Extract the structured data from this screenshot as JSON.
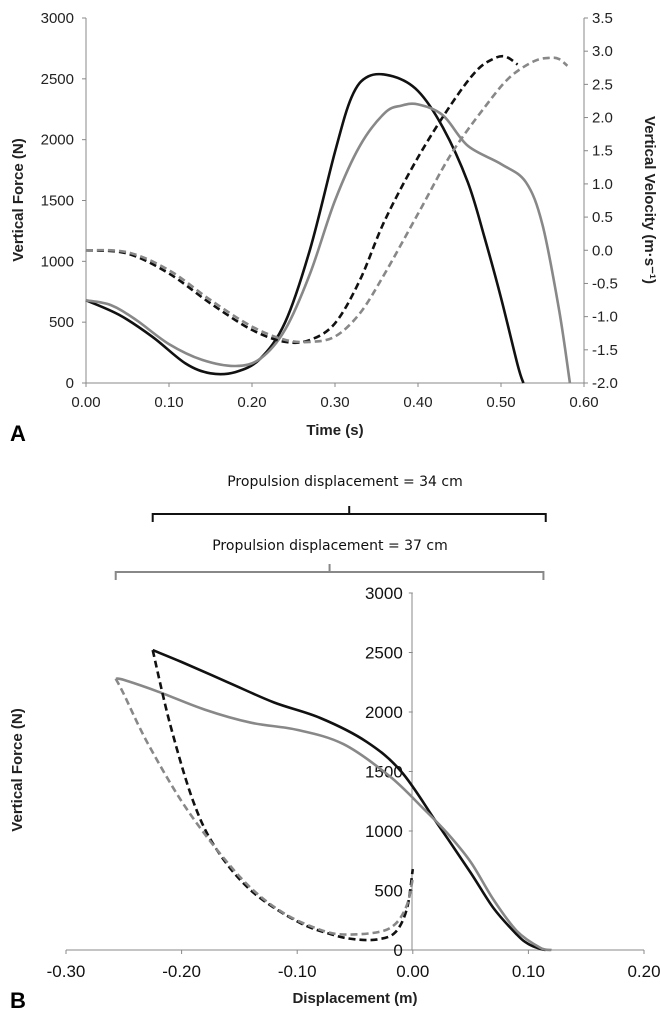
{
  "panel_a_label": "A",
  "panel_b_label": "B",
  "colors": {
    "black": "#111111",
    "gray": "#888888"
  },
  "chart_data": [
    {
      "type": "line",
      "panel": "A",
      "xlabel": "Time (s)",
      "ylabel": "Vertical Force (N)",
      "y2label": "Vertical Velocity (m·s⁻¹)",
      "xlim": [
        0,
        0.6
      ],
      "ylim": [
        0,
        3000
      ],
      "y2lim": [
        -2.0,
        3.5
      ],
      "xticks": [
        "0.00",
        "0.10",
        "0.20",
        "0.30",
        "0.40",
        "0.50",
        "0.60"
      ],
      "yticks": [
        "0",
        "500",
        "1000",
        "1500",
        "2000",
        "2500",
        "3000"
      ],
      "y2ticks": [
        "-2.0",
        "-1.5",
        "-1.0",
        "-0.5",
        "0.0",
        "0.5",
        "1.0",
        "1.5",
        "2.0",
        "2.5",
        "3.0",
        "3.5"
      ],
      "series": [
        {
          "color": "black",
          "dash": false,
          "axis": "left",
          "x": [
            0,
            0.04,
            0.08,
            0.12,
            0.15,
            0.18,
            0.21,
            0.24,
            0.27,
            0.3,
            0.32,
            0.34,
            0.37,
            0.4,
            0.43,
            0.46,
            0.48,
            0.5,
            0.52,
            0.527
          ],
          "y": [
            680,
            560,
            380,
            160,
            80,
            90,
            200,
            500,
            1100,
            1900,
            2350,
            2520,
            2520,
            2400,
            2100,
            1650,
            1200,
            700,
            150,
            0
          ]
        },
        {
          "color": "gray",
          "dash": false,
          "axis": "left",
          "x": [
            0,
            0.03,
            0.06,
            0.1,
            0.14,
            0.18,
            0.21,
            0.24,
            0.27,
            0.3,
            0.33,
            0.36,
            0.38,
            0.4,
            0.43,
            0.46,
            0.5,
            0.53,
            0.55,
            0.57,
            0.583
          ],
          "y": [
            680,
            640,
            520,
            320,
            190,
            140,
            200,
            440,
            900,
            1500,
            1950,
            2220,
            2280,
            2290,
            2200,
            1950,
            1800,
            1650,
            1300,
            600,
            0
          ]
        },
        {
          "color": "black",
          "dash": true,
          "axis": "right",
          "x": [
            0,
            0.05,
            0.1,
            0.15,
            0.2,
            0.24,
            0.27,
            0.3,
            0.33,
            0.36,
            0.4,
            0.44,
            0.47,
            0.49,
            0.505,
            0.52
          ],
          "y": [
            0.0,
            -0.05,
            -0.35,
            -0.8,
            -1.2,
            -1.38,
            -1.35,
            -1.1,
            -0.45,
            0.45,
            1.4,
            2.2,
            2.7,
            2.88,
            2.92,
            2.8
          ]
        },
        {
          "color": "gray",
          "dash": true,
          "axis": "right",
          "x": [
            0,
            0.05,
            0.1,
            0.15,
            0.2,
            0.24,
            0.27,
            0.3,
            0.33,
            0.36,
            0.4,
            0.44,
            0.48,
            0.51,
            0.54,
            0.56,
            0.57,
            0.58
          ],
          "y": [
            0.0,
            -0.03,
            -0.3,
            -0.75,
            -1.15,
            -1.35,
            -1.38,
            -1.3,
            -0.95,
            -0.35,
            0.55,
            1.45,
            2.15,
            2.6,
            2.85,
            2.9,
            2.88,
            2.78
          ]
        }
      ]
    },
    {
      "type": "line",
      "panel": "B",
      "xlabel": "Displacement (m)",
      "ylabel": "Vertical Force (N)",
      "xlim": [
        -0.3,
        0.2
      ],
      "ylim": [
        0,
        3000
      ],
      "xticks": [
        "-0.30",
        "-0.20",
        "-0.10",
        "0.00",
        "0.10",
        "0.20"
      ],
      "yticks": [
        "0",
        "500",
        "1000",
        "1500",
        "2000",
        "2500",
        "3000"
      ],
      "brackets": [
        {
          "label": "Propulsion displacement = 34 cm",
          "color": "black",
          "from": -0.225,
          "to": 0.115
        },
        {
          "label": "Propulsion displacement = 37 cm",
          "color": "gray",
          "from": -0.257,
          "to": 0.113
        }
      ],
      "series": [
        {
          "color": "black",
          "dash": false,
          "x": [
            -0.225,
            -0.2,
            -0.16,
            -0.12,
            -0.08,
            -0.04,
            -0.01,
            0.02,
            0.05,
            0.07,
            0.09,
            0.1,
            0.11,
            0.115
          ],
          "y": [
            2520,
            2420,
            2250,
            2080,
            1950,
            1750,
            1500,
            1080,
            650,
            350,
            130,
            50,
            10,
            0
          ]
        },
        {
          "color": "gray",
          "dash": false,
          "x": [
            -0.257,
            -0.25,
            -0.22,
            -0.18,
            -0.14,
            -0.1,
            -0.06,
            -0.02,
            0.01,
            0.03,
            0.05,
            0.07,
            0.09,
            0.11,
            0.12
          ],
          "y": [
            2280,
            2270,
            2170,
            2020,
            1910,
            1850,
            1730,
            1460,
            1180,
            980,
            740,
            420,
            160,
            20,
            0
          ]
        },
        {
          "color": "black",
          "dash": true,
          "x": [
            -0.225,
            -0.21,
            -0.19,
            -0.17,
            -0.14,
            -0.1,
            -0.07,
            -0.05,
            -0.03,
            -0.015,
            -0.005,
            0.0
          ],
          "y": [
            2520,
            1900,
            1250,
            850,
            500,
            240,
            130,
            90,
            90,
            150,
            350,
            680
          ]
        },
        {
          "color": "gray",
          "dash": true,
          "x": [
            -0.257,
            -0.25,
            -0.23,
            -0.2,
            -0.17,
            -0.14,
            -0.11,
            -0.08,
            -0.06,
            -0.03,
            -0.015,
            -0.005,
            0.0
          ],
          "y": [
            2280,
            2150,
            1750,
            1250,
            850,
            520,
            300,
            170,
            130,
            150,
            220,
            380,
            600
          ]
        }
      ]
    }
  ]
}
